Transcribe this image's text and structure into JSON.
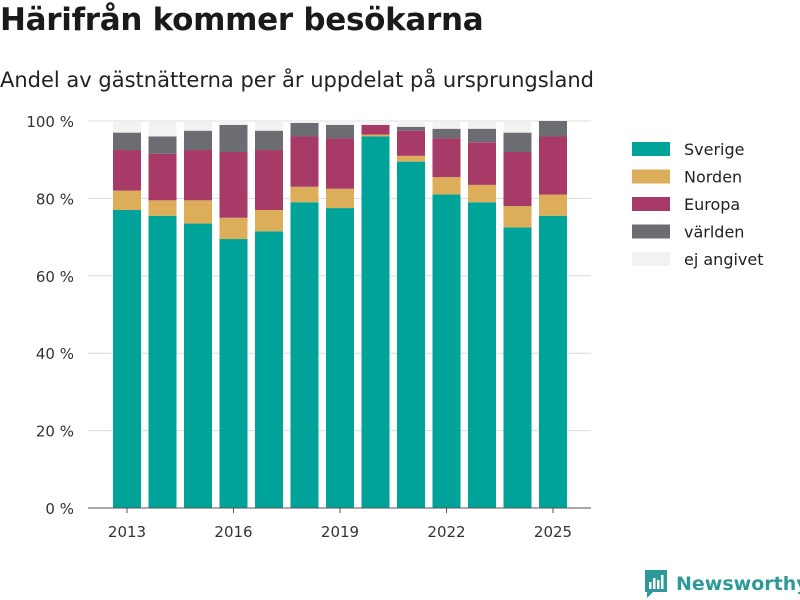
{
  "header": {
    "title": "Härifrån kommer besökarna",
    "subtitle": "Andel av gästnätterna per år uppdelat på ursprungsland"
  },
  "brand": {
    "name": "Newsworthy",
    "color": "#2d9a99"
  },
  "chart_data": {
    "type": "bar",
    "stacked": true,
    "x": [
      2013,
      2014,
      2015,
      2016,
      2017,
      2018,
      2019,
      2020,
      2021,
      2022,
      2023,
      2024,
      2025
    ],
    "x_tick_labels": [
      "2013",
      "2016",
      "2019",
      "2022",
      "2025"
    ],
    "y_tick_labels": [
      "0 %",
      "20 %",
      "40 %",
      "60 %",
      "80 %",
      "100 %"
    ],
    "ylim": [
      0,
      100
    ],
    "grid": true,
    "legend_position": "right",
    "series": [
      {
        "name": "Sverige",
        "color": "#00a39a",
        "values": [
          77,
          75.5,
          73.5,
          69.5,
          71.5,
          79,
          77.5,
          96,
          89.5,
          81,
          79,
          72.5,
          75.5
        ]
      },
      {
        "name": "Norden",
        "color": "#dcae5a",
        "values": [
          5,
          4,
          6,
          5.5,
          5.5,
          4,
          5,
          0.5,
          1.5,
          4.5,
          4.5,
          5.5,
          5.5
        ]
      },
      {
        "name": "Europa",
        "color": "#a83a68",
        "values": [
          10.5,
          12,
          13,
          17,
          15.5,
          13,
          13,
          2.5,
          6.5,
          10,
          11,
          14,
          15
        ]
      },
      {
        "name": "världen",
        "color": "#6c6c73",
        "values": [
          4.5,
          4.5,
          5,
          7,
          5,
          3.5,
          3.5,
          0,
          1,
          2.5,
          3.5,
          5,
          4
        ]
      },
      {
        "name": "ej angivet",
        "color": "#f2f2f2",
        "values": [
          3,
          4,
          2.5,
          1,
          2.5,
          0.5,
          1,
          1,
          1.5,
          2,
          2,
          3,
          0
        ]
      }
    ]
  }
}
